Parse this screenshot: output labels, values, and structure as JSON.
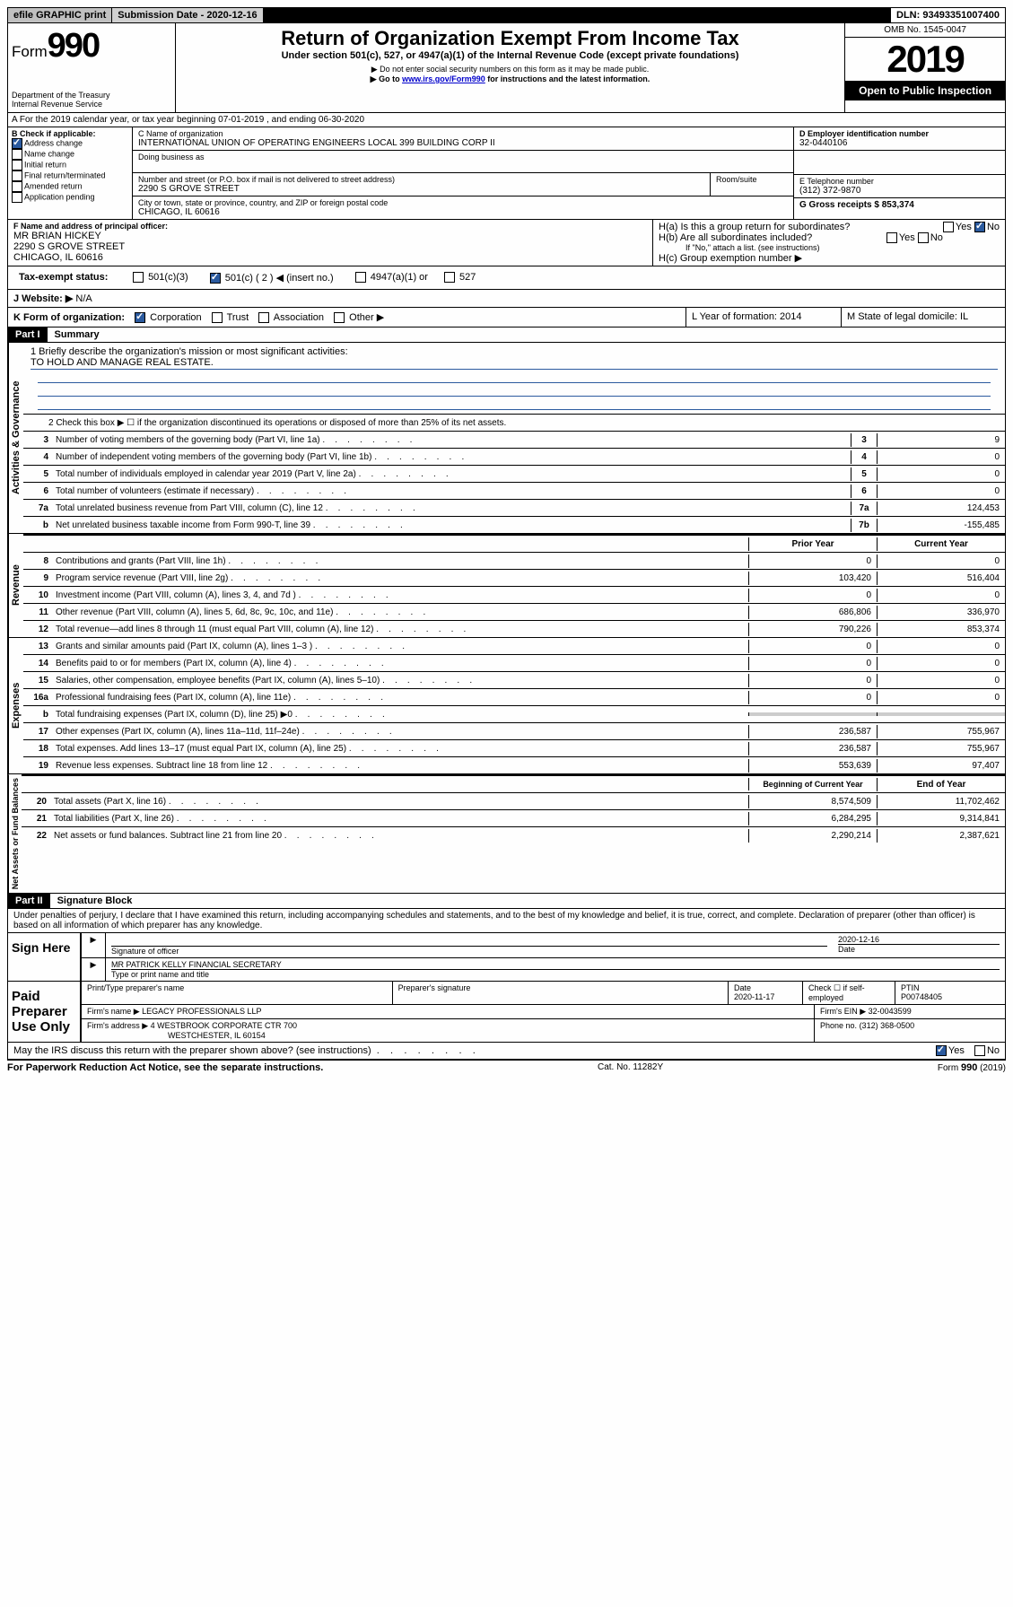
{
  "topbar": {
    "efile": "efile GRAPHIC print",
    "submission_label": "Submission Date - 2020-12-16",
    "dln": "DLN: 93493351007400"
  },
  "header": {
    "form_prefix": "Form",
    "form_number": "990",
    "dept1": "Department of the Treasury",
    "dept2": "Internal Revenue Service",
    "title": "Return of Organization Exempt From Income Tax",
    "subtitle": "Under section 501(c), 527, or 4947(a)(1) of the Internal Revenue Code (except private foundations)",
    "note1": "▶ Do not enter social security numbers on this form as it may be made public.",
    "note2_pre": "▶ Go to ",
    "note2_link": "www.irs.gov/Form990",
    "note2_post": " for instructions and the latest information.",
    "omb": "OMB No. 1545-0047",
    "year": "2019",
    "open_public": "Open to Public Inspection"
  },
  "section_a": "A For the 2019 calendar year, or tax year beginning 07-01-2019    , and ending 06-30-2020",
  "box_b": {
    "label": "B Check if applicable:",
    "items": [
      "Address change",
      "Name change",
      "Initial return",
      "Final return/terminated",
      "Amended return",
      "Application pending"
    ],
    "checked_index": 0
  },
  "box_c": {
    "name_label": "C Name of organization",
    "name": "INTERNATIONAL UNION OF OPERATING ENGINEERS LOCAL 399 BUILDING CORP II",
    "dba_label": "Doing business as",
    "addr_label": "Number and street (or P.O. box if mail is not delivered to street address)",
    "room_label": "Room/suite",
    "addr": "2290 S GROVE STREET",
    "city_label": "City or town, state or province, country, and ZIP or foreign postal code",
    "city": "CHICAGO, IL  60616"
  },
  "box_d": {
    "ein_label": "D Employer identification number",
    "ein": "32-0440106",
    "phone_label": "E Telephone number",
    "phone": "(312) 372-9870",
    "gross_label": "G Gross receipts $ 853,374"
  },
  "box_f": {
    "label": "F  Name and address of principal officer:",
    "name": "MR BRIAN HICKEY",
    "addr1": "2290 S GROVE STREET",
    "addr2": "CHICAGO, IL  60616"
  },
  "box_h": {
    "ha_label": "H(a)  Is this a group return for subordinates?",
    "hb_label": "H(b)  Are all subordinates included?",
    "hb_note": "If \"No,\" attach a list. (see instructions)",
    "hc_label": "H(c)  Group exemption number ▶"
  },
  "box_i": {
    "label": "Tax-exempt status:",
    "opt1": "501(c)(3)",
    "opt2": "501(c) ( 2 ) ◀ (insert no.)",
    "opt3": "4947(a)(1) or",
    "opt4": "527"
  },
  "box_j": {
    "label": "J    Website: ▶",
    "val": "N/A"
  },
  "box_k": {
    "label": "K Form of organization:",
    "opts": [
      "Corporation",
      "Trust",
      "Association",
      "Other ▶"
    ]
  },
  "box_l": {
    "label": "L Year of formation: 2014"
  },
  "box_m": {
    "label": "M State of legal domicile: IL"
  },
  "part1": {
    "header": "Part I",
    "title": "Summary",
    "vert_labels": [
      "Activities & Governance",
      "Revenue",
      "Expenses",
      "Net Assets or Fund Balances"
    ],
    "line1_label": "1  Briefly describe the organization's mission or most significant activities:",
    "mission": "TO HOLD AND MANAGE REAL ESTATE.",
    "line2": "2   Check this box ▶ ☐  if the organization discontinued its operations or disposed of more than 25% of its net assets.",
    "col_prior": "Prior Year",
    "col_current": "Current Year",
    "col_begin": "Beginning of Current Year",
    "col_end": "End of Year",
    "rows_gov": [
      {
        "n": "3",
        "t": "Number of voting members of the governing body (Part VI, line 1a)",
        "box": "3",
        "v": "9"
      },
      {
        "n": "4",
        "t": "Number of independent voting members of the governing body (Part VI, line 1b)",
        "box": "4",
        "v": "0"
      },
      {
        "n": "5",
        "t": "Total number of individuals employed in calendar year 2019 (Part V, line 2a)",
        "box": "5",
        "v": "0"
      },
      {
        "n": "6",
        "t": "Total number of volunteers (estimate if necessary)",
        "box": "6",
        "v": "0"
      },
      {
        "n": "7a",
        "t": "Total unrelated business revenue from Part VIII, column (C), line 12",
        "box": "7a",
        "v": "124,453"
      },
      {
        "n": "b",
        "t": "Net unrelated business taxable income from Form 990-T, line 39",
        "box": "7b",
        "v": "-155,485"
      }
    ],
    "rows_rev": [
      {
        "n": "8",
        "t": "Contributions and grants (Part VIII, line 1h)",
        "p": "0",
        "c": "0"
      },
      {
        "n": "9",
        "t": "Program service revenue (Part VIII, line 2g)",
        "p": "103,420",
        "c": "516,404"
      },
      {
        "n": "10",
        "t": "Investment income (Part VIII, column (A), lines 3, 4, and 7d )",
        "p": "0",
        "c": "0"
      },
      {
        "n": "11",
        "t": "Other revenue (Part VIII, column (A), lines 5, 6d, 8c, 9c, 10c, and 11e)",
        "p": "686,806",
        "c": "336,970"
      },
      {
        "n": "12",
        "t": "Total revenue—add lines 8 through 11 (must equal Part VIII, column (A), line 12)",
        "p": "790,226",
        "c": "853,374"
      }
    ],
    "rows_exp": [
      {
        "n": "13",
        "t": "Grants and similar amounts paid (Part IX, column (A), lines 1–3 )",
        "p": "0",
        "c": "0"
      },
      {
        "n": "14",
        "t": "Benefits paid to or for members (Part IX, column (A), line 4)",
        "p": "0",
        "c": "0"
      },
      {
        "n": "15",
        "t": "Salaries, other compensation, employee benefits (Part IX, column (A), lines 5–10)",
        "p": "0",
        "c": "0"
      },
      {
        "n": "16a",
        "t": "Professional fundraising fees (Part IX, column (A), line 11e)",
        "p": "0",
        "c": "0"
      },
      {
        "n": "b",
        "t": "Total fundraising expenses (Part IX, column (D), line 25) ▶0",
        "p": "",
        "c": "",
        "grey": true
      },
      {
        "n": "17",
        "t": "Other expenses (Part IX, column (A), lines 11a–11d, 11f–24e)",
        "p": "236,587",
        "c": "755,967"
      },
      {
        "n": "18",
        "t": "Total expenses. Add lines 13–17 (must equal Part IX, column (A), line 25)",
        "p": "236,587",
        "c": "755,967"
      },
      {
        "n": "19",
        "t": "Revenue less expenses. Subtract line 18 from line 12",
        "p": "553,639",
        "c": "97,407"
      }
    ],
    "rows_net": [
      {
        "n": "20",
        "t": "Total assets (Part X, line 16)",
        "p": "8,574,509",
        "c": "11,702,462"
      },
      {
        "n": "21",
        "t": "Total liabilities (Part X, line 26)",
        "p": "6,284,295",
        "c": "9,314,841"
      },
      {
        "n": "22",
        "t": "Net assets or fund balances. Subtract line 21 from line 20",
        "p": "2,290,214",
        "c": "2,387,621"
      }
    ]
  },
  "part2": {
    "header": "Part II",
    "title": "Signature Block",
    "declaration": "Under penalties of perjury, I declare that I have examined this return, including accompanying schedules and statements, and to the best of my knowledge and belief, it is true, correct, and complete. Declaration of preparer (other than officer) is based on all information of which preparer has any knowledge.",
    "sign_here": "Sign Here",
    "sig_officer": "Signature of officer",
    "sig_date": "2020-12-16",
    "date_label": "Date",
    "officer_name": "MR PATRICK KELLY  FINANCIAL SECRETARY",
    "type_name": "Type or print name and title",
    "paid_preparer": "Paid Preparer Use Only",
    "pp_name_label": "Print/Type preparer's name",
    "pp_sig_label": "Preparer's signature",
    "pp_date_label": "Date",
    "pp_date": "2020-11-17",
    "pp_check": "Check ☐ if self-employed",
    "ptin_label": "PTIN",
    "ptin": "P00748405",
    "firm_name_label": "Firm's name    ▶",
    "firm_name": "LEGACY PROFESSIONALS LLP",
    "firm_ein_label": "Firm's EIN ▶",
    "firm_ein": "32-0043599",
    "firm_addr_label": "Firm's address ▶",
    "firm_addr1": "4 WESTBROOK CORPORATE CTR 700",
    "firm_addr2": "WESTCHESTER, IL  60154",
    "phone_label": "Phone no.",
    "phone": "(312) 368-0500",
    "discuss": "May the IRS discuss this return with the preparer shown above? (see instructions)"
  },
  "footer": {
    "paperwork": "For Paperwork Reduction Act Notice, see the separate instructions.",
    "cat": "Cat. No. 11282Y",
    "form": "Form 990 (2019)"
  }
}
